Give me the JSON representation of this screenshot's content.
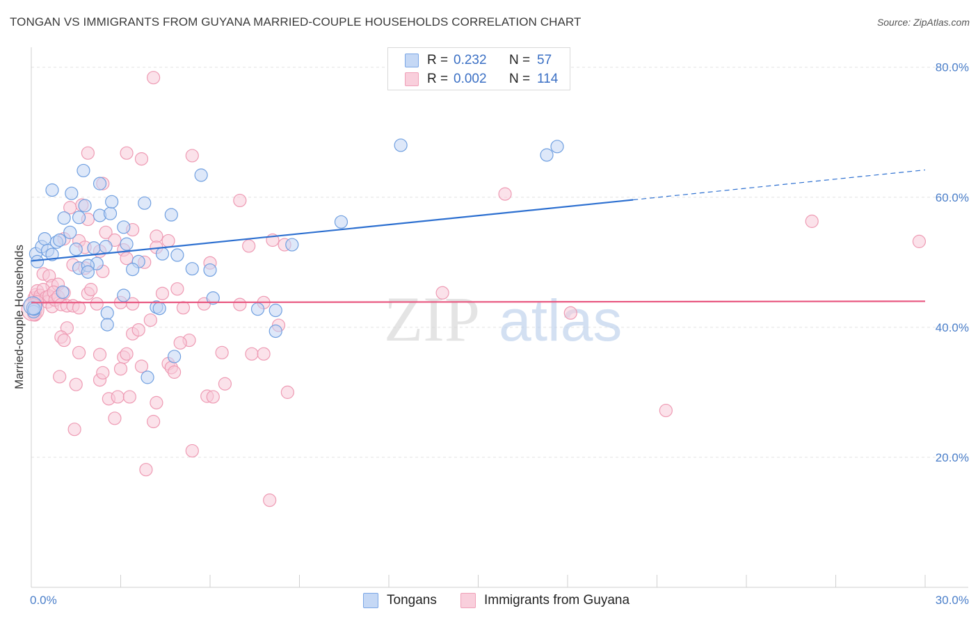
{
  "title": "TONGAN VS IMMIGRANTS FROM GUYANA MARRIED-COUPLE HOUSEHOLDS CORRELATION CHART",
  "source": "Source: ZipAtlas.com",
  "watermark": {
    "zip": "ZIP",
    "atlas": "atlas"
  },
  "legend_top": [
    {
      "r_label": "R =",
      "r_value": "0.232",
      "n_label": "N =",
      "n_value": "57",
      "color": "#7aa6e6",
      "fill": "#c5d8f5"
    },
    {
      "r_label": "R =",
      "r_value": "0.002",
      "n_label": "N =",
      "n_value": "114",
      "color": "#f0a0b8",
      "fill": "#f9cfdc"
    }
  ],
  "chart_data": {
    "type": "scatter",
    "title": "TONGAN VS IMMIGRANTS FROM GUYANA MARRIED-COUPLE HOUSEHOLDS CORRELATION CHART",
    "xlabel": "",
    "ylabel": "Married-couple Households",
    "xlim": [
      0,
      30
    ],
    "ylim": [
      0,
      82
    ],
    "x_tick_labels": [
      "0.0%",
      "30.0%"
    ],
    "y_ticks": [
      20,
      40,
      60,
      80
    ],
    "y_tick_labels": [
      "20.0%",
      "40.0%",
      "60.0%",
      "80.0%"
    ],
    "grid": true,
    "legend": "bottom",
    "series": [
      {
        "name": "Tongans",
        "color": "#6f9fe0",
        "fill": "#c2d6f4",
        "trend": {
          "x0": 0,
          "y0": 50.2,
          "x1": 20.2,
          "y1": 59.6,
          "extend_to_x": 30,
          "extend_y": 64.2,
          "color": "#2c6fd0"
        },
        "points": [
          [
            0.15,
            51.3
          ],
          [
            0.2,
            50.1
          ],
          [
            0.35,
            52.4
          ],
          [
            0.45,
            53.6
          ],
          [
            0.55,
            51.8
          ],
          [
            0.7,
            51.2
          ],
          [
            0.85,
            53.1
          ],
          [
            0.95,
            53.4
          ],
          [
            0.7,
            61.1
          ],
          [
            1.35,
            60.6
          ],
          [
            1.75,
            64.1
          ],
          [
            2.3,
            62.1
          ],
          [
            1.1,
            56.8
          ],
          [
            1.6,
            56.9
          ],
          [
            1.8,
            58.7
          ],
          [
            2.3,
            57.2
          ],
          [
            2.65,
            57.5
          ],
          [
            2.7,
            59.3
          ],
          [
            3.1,
            55.4
          ],
          [
            3.8,
            59.1
          ],
          [
            4.7,
            57.3
          ],
          [
            5.7,
            63.4
          ],
          [
            1.3,
            54.6
          ],
          [
            1.5,
            52.0
          ],
          [
            2.1,
            52.2
          ],
          [
            2.2,
            49.8
          ],
          [
            2.5,
            52.4
          ],
          [
            3.2,
            52.8
          ],
          [
            3.6,
            50.1
          ],
          [
            3.4,
            48.9
          ],
          [
            4.4,
            51.3
          ],
          [
            4.9,
            51.1
          ],
          [
            5.4,
            49.0
          ],
          [
            6.0,
            48.8
          ],
          [
            1.6,
            49.1
          ],
          [
            1.9,
            49.5
          ],
          [
            1.9,
            48.5
          ],
          [
            1.05,
            45.4
          ],
          [
            3.1,
            44.9
          ],
          [
            4.2,
            43.1
          ],
          [
            4.3,
            42.9
          ],
          [
            6.1,
            44.5
          ],
          [
            7.6,
            42.8
          ],
          [
            8.2,
            42.6
          ],
          [
            8.2,
            39.4
          ],
          [
            2.55,
            42.2
          ],
          [
            2.55,
            40.4
          ],
          [
            3.9,
            32.3
          ],
          [
            4.8,
            35.5
          ],
          [
            10.4,
            56.2
          ],
          [
            8.75,
            52.7
          ],
          [
            12.4,
            68.0
          ],
          [
            17.3,
            66.5
          ],
          [
            17.65,
            67.8
          ],
          [
            0.05,
            43.0
          ],
          [
            0.08,
            42.4
          ],
          [
            0.1,
            42.8
          ]
        ]
      },
      {
        "name": "Immigrants from Guyana",
        "color": "#ee9ab3",
        "fill": "#f8cad8",
        "trend": {
          "x0": 0,
          "y0": 43.8,
          "x1": 30,
          "y1": 44.0,
          "color": "#e8567f"
        },
        "points": [
          [
            4.1,
            78.4
          ],
          [
            1.9,
            66.8
          ],
          [
            3.2,
            66.8
          ],
          [
            3.7,
            65.9
          ],
          [
            5.4,
            66.4
          ],
          [
            2.4,
            62.1
          ],
          [
            7.0,
            59.5
          ],
          [
            15.9,
            60.5
          ],
          [
            26.2,
            56.3
          ],
          [
            29.8,
            53.2
          ],
          [
            1.3,
            58.4
          ],
          [
            1.7,
            58.8
          ],
          [
            1.9,
            56.6
          ],
          [
            2.5,
            54.6
          ],
          [
            2.8,
            53.4
          ],
          [
            3.4,
            55.0
          ],
          [
            4.2,
            54.0
          ],
          [
            4.6,
            53.3
          ],
          [
            7.3,
            52.5
          ],
          [
            8.1,
            53.4
          ],
          [
            8.5,
            52.7
          ],
          [
            1.1,
            53.6
          ],
          [
            1.6,
            53.3
          ],
          [
            1.8,
            52.3
          ],
          [
            2.3,
            51.7
          ],
          [
            3.1,
            51.9
          ],
          [
            3.2,
            50.6
          ],
          [
            3.8,
            50.0
          ],
          [
            4.2,
            52.3
          ],
          [
            6.0,
            49.9
          ],
          [
            0.4,
            48.2
          ],
          [
            0.6,
            47.9
          ],
          [
            0.7,
            46.4
          ],
          [
            0.9,
            46.6
          ],
          [
            1.4,
            49.6
          ],
          [
            1.8,
            49.1
          ],
          [
            2.4,
            48.6
          ],
          [
            0.1,
            44.5
          ],
          [
            0.15,
            45.0
          ],
          [
            0.2,
            45.6
          ],
          [
            0.25,
            44.3
          ],
          [
            0.3,
            44.9
          ],
          [
            0.4,
            45.8
          ],
          [
            0.5,
            44.6
          ],
          [
            0.55,
            43.9
          ],
          [
            0.6,
            44.8
          ],
          [
            0.7,
            43.2
          ],
          [
            0.75,
            45.4
          ],
          [
            0.8,
            44.2
          ],
          [
            0.9,
            44.7
          ],
          [
            1.0,
            43.5
          ],
          [
            1.1,
            45.3
          ],
          [
            1.2,
            43.3
          ],
          [
            1.4,
            43.3
          ],
          [
            1.6,
            43.0
          ],
          [
            1.9,
            45.2
          ],
          [
            2.0,
            45.8
          ],
          [
            2.2,
            43.6
          ],
          [
            3.0,
            43.8
          ],
          [
            3.4,
            43.6
          ],
          [
            4.4,
            45.2
          ],
          [
            4.9,
            45.9
          ],
          [
            5.1,
            43.0
          ],
          [
            5.8,
            43.6
          ],
          [
            7.0,
            43.5
          ],
          [
            7.8,
            43.8
          ],
          [
            13.8,
            45.3
          ],
          [
            18.1,
            42.2
          ],
          [
            1.2,
            39.9
          ],
          [
            1.0,
            38.5
          ],
          [
            1.1,
            38.0
          ],
          [
            3.4,
            39.0
          ],
          [
            3.6,
            39.6
          ],
          [
            4.0,
            41.1
          ],
          [
            5.3,
            38.0
          ],
          [
            5.0,
            37.6
          ],
          [
            6.4,
            36.1
          ],
          [
            7.4,
            35.9
          ],
          [
            7.8,
            35.9
          ],
          [
            8.3,
            40.3
          ],
          [
            1.6,
            36.1
          ],
          [
            2.3,
            35.8
          ],
          [
            3.1,
            35.4
          ],
          [
            3.2,
            35.9
          ],
          [
            3.7,
            34.0
          ],
          [
            4.6,
            34.4
          ],
          [
            4.7,
            33.8
          ],
          [
            4.8,
            33.1
          ],
          [
            0.95,
            32.4
          ],
          [
            1.5,
            31.2
          ],
          [
            2.3,
            31.9
          ],
          [
            2.4,
            33.0
          ],
          [
            3.0,
            33.6
          ],
          [
            6.5,
            31.3
          ],
          [
            8.6,
            30.0
          ],
          [
            2.6,
            29.0
          ],
          [
            2.9,
            29.3
          ],
          [
            3.3,
            29.3
          ],
          [
            4.2,
            28.4
          ],
          [
            5.9,
            29.4
          ],
          [
            6.1,
            29.3
          ],
          [
            2.8,
            26.0
          ],
          [
            4.1,
            25.5
          ],
          [
            1.45,
            24.3
          ],
          [
            5.4,
            21.0
          ],
          [
            3.85,
            18.1
          ],
          [
            8.0,
            13.4
          ],
          [
            21.3,
            27.2
          ],
          [
            0.05,
            42.8
          ],
          [
            0.08,
            42.1
          ],
          [
            0.1,
            43.5
          ],
          [
            0.12,
            41.9
          ],
          [
            0.15,
            42.6
          ],
          [
            0.2,
            43.9
          ]
        ]
      }
    ]
  }
}
